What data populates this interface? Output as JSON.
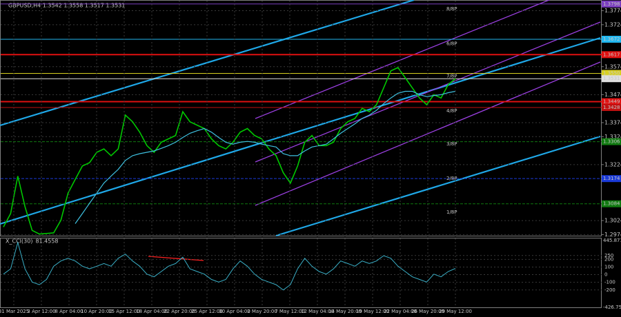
{
  "chart_data": {
    "type": "line",
    "title": "GBPUSD,H4 1.3542 1.3558 1.3517 1.3531",
    "grid": true,
    "ylim": [
      1.297,
      1.38
    ],
    "yticks": [
      1.3774,
      1.3724,
      1.3574,
      1.3474,
      1.3374,
      1.3324,
      1.3224,
      1.3024,
      1.2974
    ],
    "xtick_labels": [
      "31 Mar 2025",
      "3 Apr 12:00",
      "8 Apr 04:00",
      "10 Apr 20:00",
      "15 Apr 12:00",
      "18 Apr 04:00",
      "22 Apr 20:00",
      "25 Apr 12:00",
      "30 Apr 04:00",
      "2 May 20:00",
      "7 May 12:00",
      "12 May 04:00",
      "14 May 20:00",
      "19 May 12:00",
      "22 May 04:00",
      "26 May 20:00",
      "29 May 12:00"
    ],
    "series": [
      {
        "color": "#00c800",
        "values": [
          1.3001,
          1.3049,
          1.3183,
          1.3074,
          1.2989,
          1.2976,
          1.2978,
          1.298,
          1.3025,
          1.3122,
          1.3171,
          1.3219,
          1.3231,
          1.3268,
          1.328,
          1.3256,
          1.328,
          1.3401,
          1.3377,
          1.334,
          1.3292,
          1.3268,
          1.3304,
          1.3316,
          1.3328,
          1.3413,
          1.3377,
          1.3365,
          1.3353,
          1.3316,
          1.3292,
          1.328,
          1.3304,
          1.334,
          1.3353,
          1.3328,
          1.3316,
          1.328,
          1.3256,
          1.3195,
          1.3158,
          1.3219,
          1.3304,
          1.3328,
          1.3292,
          1.3292,
          1.3304,
          1.3353,
          1.3377,
          1.3389,
          1.3425,
          1.3413,
          1.3438,
          1.3498,
          1.3559,
          1.3571,
          1.3535,
          1.3498,
          1.3462,
          1.3438,
          1.3474,
          1.3462,
          1.351,
          1.3531
        ]
      },
      {
        "color": "#3ec1e0",
        "values": [
          null,
          null,
          null,
          null,
          null,
          null,
          null,
          null,
          null,
          null,
          1.3013,
          1.3049,
          1.3086,
          1.3122,
          1.3158,
          1.3183,
          1.3207,
          1.3239,
          1.3256,
          1.3263,
          1.3268,
          1.3273,
          1.3282,
          1.3292,
          1.3304,
          1.3321,
          1.3336,
          1.3345,
          1.3353,
          1.334,
          1.3321,
          1.3304,
          1.3297,
          1.3304,
          1.3307,
          1.3304,
          1.3297,
          1.3292,
          1.3287,
          1.3263,
          1.3256,
          1.3256,
          1.3273,
          1.3287,
          1.3292,
          1.3297,
          1.3316,
          1.3336,
          1.3353,
          1.337,
          1.3389,
          1.3401,
          1.3418,
          1.3442,
          1.3462,
          1.3479,
          1.3486,
          1.3486,
          1.3474,
          1.3467,
          1.3471,
          1.3474,
          1.3481,
          1.3486
        ]
      }
    ],
    "levels": [
      {
        "value": 1.3798,
        "label": "1.3798",
        "color": "#7b3fbf"
      },
      {
        "value": 1.3672,
        "label": "1.3672",
        "color": "#22b8f0"
      },
      {
        "value": 1.3617,
        "label": "1.3617",
        "color": "#e01010"
      },
      {
        "value": 1.355,
        "label": "1.3550",
        "color": "#d8d020"
      },
      {
        "value": 1.3531,
        "label": "1.3531",
        "color": "#e0e0e0"
      },
      {
        "value": 1.3449,
        "label": "1.3449",
        "color": "#e01010"
      },
      {
        "value": 1.3428,
        "label": "1.3428",
        "color": "#c01010"
      },
      {
        "value": 1.3306,
        "label": "1.3306",
        "color": "#107a10"
      },
      {
        "value": 1.3174,
        "label": "1.3174",
        "color": "#1a3ad8"
      },
      {
        "value": 1.3084,
        "label": "1.3084",
        "color": "#107a10"
      }
    ],
    "murrey": [
      {
        "label": "8/8P",
        "value": 1.378
      },
      {
        "label": "6/8P",
        "value": 1.3656
      },
      {
        "label": "7/8P",
        "value": 1.354
      },
      {
        "label": "4/8P",
        "value": 1.3416
      },
      {
        "label": "3/8P",
        "value": 1.3297
      },
      {
        "label": "2/8P",
        "value": 1.3175
      },
      {
        "label": "1/8P",
        "value": 1.3054
      }
    ],
    "cci": {
      "name": "X_CCI(30)",
      "color": "#3ab0c8",
      "ylim": [
        -426.7573,
        445.8715
      ],
      "ylim_labels": [
        "-426.7573",
        "445.8715"
      ],
      "yticks": [
        250,
        200,
        100,
        0,
        -100,
        -200
      ],
      "values": [
        7,
        76,
        420,
        76,
        -97,
        -131,
        -62,
        110,
        179,
        214,
        179,
        110,
        76,
        110,
        145,
        110,
        214,
        269,
        179,
        110,
        7,
        -28,
        41,
        110,
        145,
        228,
        76,
        41,
        7,
        -62,
        -97,
        -62,
        76,
        179,
        110,
        7,
        -62,
        -97,
        -131,
        -200,
        -131,
        76,
        214,
        110,
        41,
        7,
        76,
        179,
        145,
        110,
        179,
        145,
        179,
        248,
        214,
        110,
        41,
        -28,
        -62,
        -97,
        7,
        -28,
        41,
        81.4558
      ]
    }
  }
}
